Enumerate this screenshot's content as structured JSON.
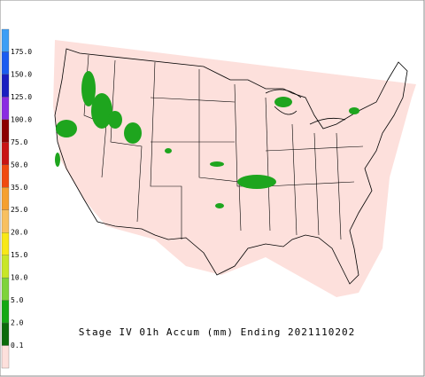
{
  "title": "Stage IV 01h Accum (mm) Ending 2021110202",
  "legend": {
    "labels": [
      "175.0",
      "150.0",
      "125.0",
      "100.0",
      "75.0",
      "50.0",
      "35.0",
      "25.0",
      "20.0",
      "15.0",
      "10.0",
      "5.0",
      "2.0",
      "0.1"
    ],
    "colors": [
      "#3c9ef5",
      "#1b5cf0",
      "#1a1fc0",
      "#8a2be2",
      "#8b0000",
      "#c81414",
      "#f04a10",
      "#f5a030",
      "#f8c060",
      "#f8e818",
      "#c8e628",
      "#7ed33a",
      "#14a814",
      "#0a6a0a",
      "#fde0dc"
    ]
  }
}
